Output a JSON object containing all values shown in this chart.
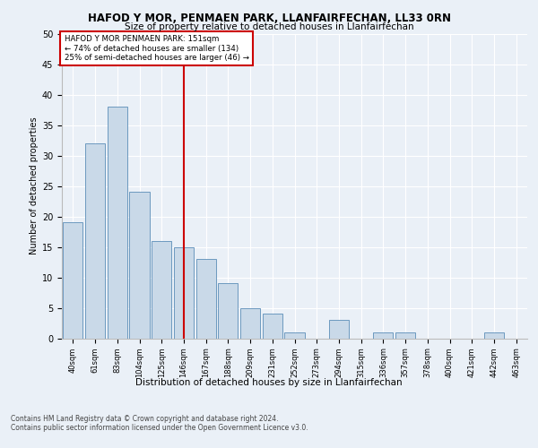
{
  "title1": "HAFOD Y MOR, PENMAEN PARK, LLANFAIRFECHAN, LL33 0RN",
  "title2": "Size of property relative to detached houses in Llanfairfechan",
  "xlabel": "Distribution of detached houses by size in Llanfairfechan",
  "ylabel": "Number of detached properties",
  "categories": [
    "40sqm",
    "61sqm",
    "83sqm",
    "104sqm",
    "125sqm",
    "146sqm",
    "167sqm",
    "188sqm",
    "209sqm",
    "231sqm",
    "252sqm",
    "273sqm",
    "294sqm",
    "315sqm",
    "336sqm",
    "357sqm",
    "378sqm",
    "400sqm",
    "421sqm",
    "442sqm",
    "463sqm"
  ],
  "values": [
    19,
    32,
    38,
    24,
    16,
    15,
    13,
    9,
    5,
    4,
    1,
    0,
    3,
    0,
    1,
    1,
    0,
    0,
    0,
    1,
    0
  ],
  "bar_color": "#c9d9e8",
  "bar_edgecolor": "#5b8db8",
  "vline_index": 5,
  "marker_label": "HAFOD Y MOR PENMAEN PARK: 151sqm",
  "annotation_line1": "← 74% of detached houses are smaller (134)",
  "annotation_line2": "25% of semi-detached houses are larger (46) →",
  "vline_color": "#cc0000",
  "annotation_box_edgecolor": "#cc0000",
  "ylim": [
    0,
    50
  ],
  "yticks": [
    0,
    5,
    10,
    15,
    20,
    25,
    30,
    35,
    40,
    45,
    50
  ],
  "footer1": "Contains HM Land Registry data © Crown copyright and database right 2024.",
  "footer2": "Contains public sector information licensed under the Open Government Licence v3.0.",
  "bg_color": "#eaf0f7",
  "plot_bg_color": "#eaf0f7",
  "grid_color": "#ffffff"
}
